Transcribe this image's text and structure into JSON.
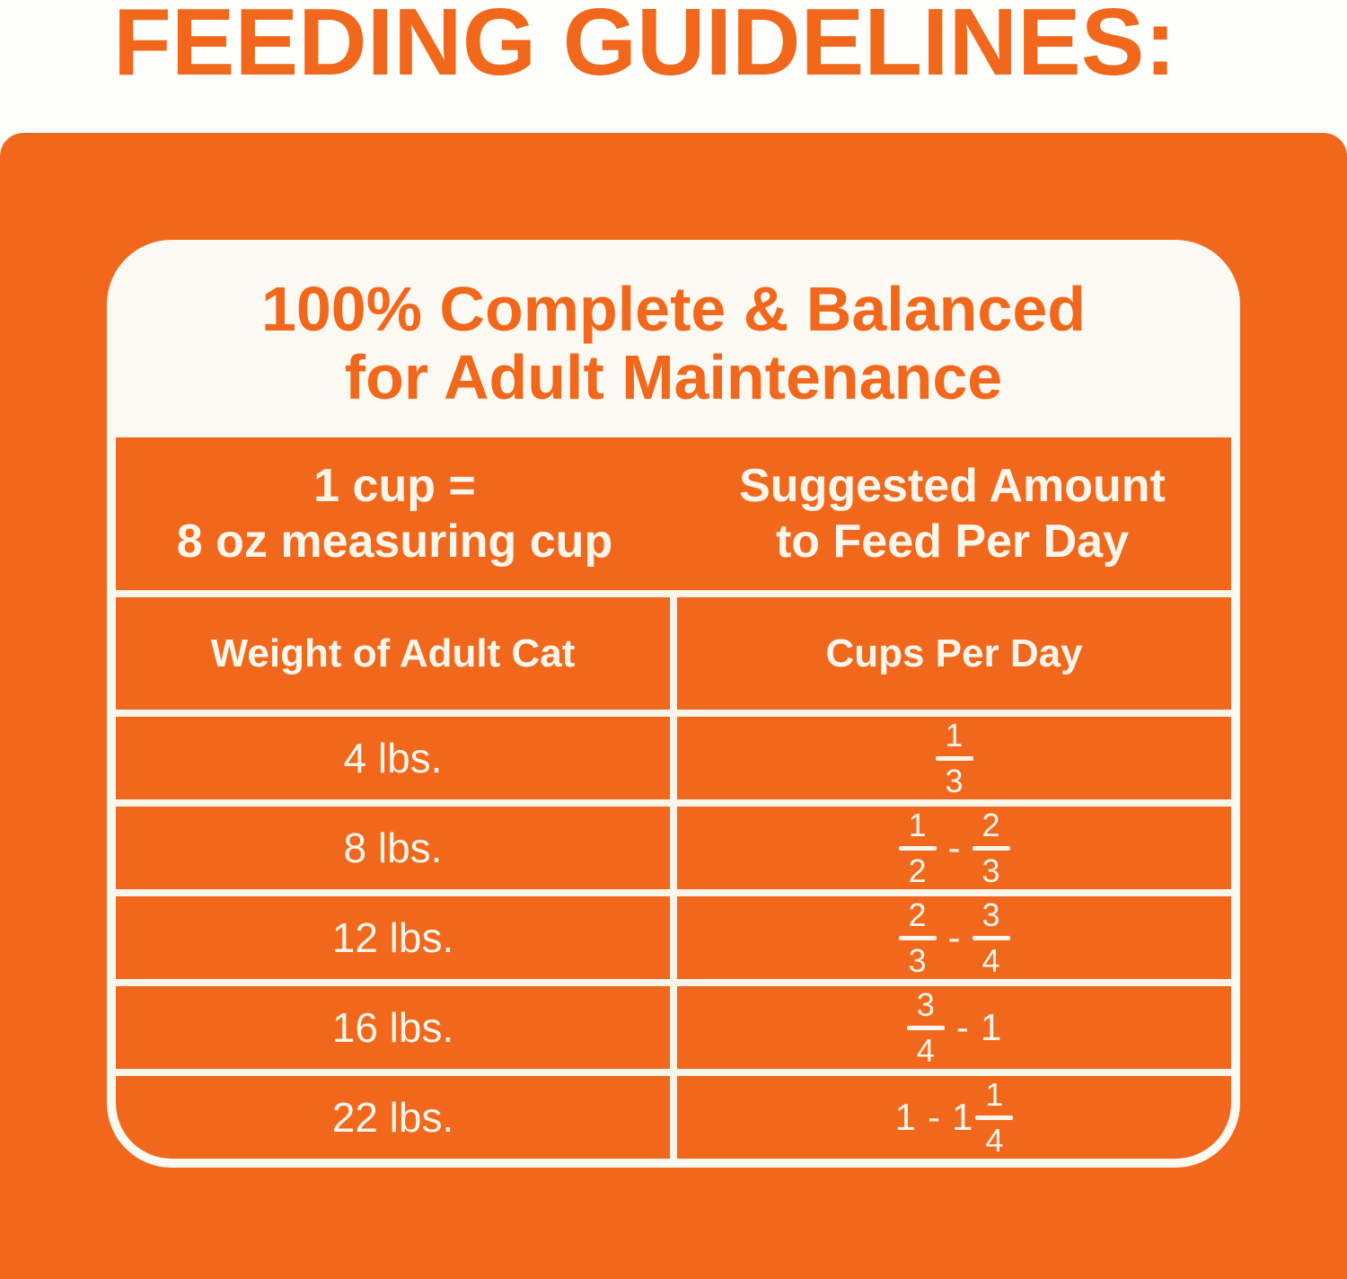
{
  "heading": {
    "title": "FEEDING GUIDELINES:"
  },
  "card": {
    "title_line1": "100% Complete & Balanced",
    "title_line2": "for Adult Maintenance"
  },
  "table": {
    "measure": {
      "line1": "1 cup =",
      "line2": "8 oz measuring cup"
    },
    "suggested": {
      "line1": "Suggested Amount",
      "line2": "to Feed Per Day"
    },
    "col_headers": [
      "Weight of Adult Cat",
      "Cups Per Day"
    ],
    "rows": [
      {
        "weight": "4 lbs.",
        "cups_text": "1/3",
        "cups": [
          {
            "t": "frac",
            "n": "1",
            "d": "3"
          }
        ]
      },
      {
        "weight": "8 lbs.",
        "cups_text": "1/2 - 2/3",
        "cups": [
          {
            "t": "frac",
            "n": "1",
            "d": "2"
          },
          {
            "t": "txt",
            "v": "-"
          },
          {
            "t": "frac",
            "n": "2",
            "d": "3"
          }
        ]
      },
      {
        "weight": "12 lbs.",
        "cups_text": "2/3 - 3/4",
        "cups": [
          {
            "t": "frac",
            "n": "2",
            "d": "3"
          },
          {
            "t": "txt",
            "v": "-"
          },
          {
            "t": "frac",
            "n": "3",
            "d": "4"
          }
        ]
      },
      {
        "weight": "16 lbs.",
        "cups_text": "3/4 - 1",
        "cups": [
          {
            "t": "frac",
            "n": "3",
            "d": "4"
          },
          {
            "t": "txt",
            "v": "-"
          },
          {
            "t": "txt",
            "v": "1"
          }
        ]
      },
      {
        "weight": "22 lbs.",
        "cups_text": "1 - 1 1/4",
        "cups": [
          {
            "t": "txt",
            "v": "1"
          },
          {
            "t": "txt",
            "v": "-"
          },
          {
            "t": "mixed",
            "whole": "1",
            "n": "1",
            "d": "4"
          }
        ]
      }
    ]
  },
  "chart_data": {
    "type": "table",
    "title": "FEEDING GUIDELINES: 100% Complete & Balanced for Adult Maintenance",
    "note": "1 cup = 8 oz measuring cup; Suggested Amount to Feed Per Day",
    "columns": [
      "Weight of Adult Cat",
      "Cups Per Day"
    ],
    "rows": [
      [
        "4 lbs.",
        "1/3"
      ],
      [
        "8 lbs.",
        "1/2 - 2/3"
      ],
      [
        "12 lbs.",
        "2/3 - 3/4"
      ],
      [
        "16 lbs.",
        "3/4 - 1"
      ],
      [
        "22 lbs.",
        "1 - 1 1/4"
      ]
    ]
  },
  "colors": {
    "accent_orange": "#F1681C",
    "card_white": "#FCF9F3",
    "gridline_cream": "#FAF4E9",
    "table_text": "#FBF6EC"
  }
}
